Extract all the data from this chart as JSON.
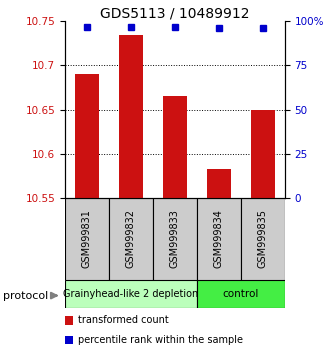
{
  "title": "GDS5113 / 10489912",
  "samples": [
    "GSM999831",
    "GSM999832",
    "GSM999833",
    "GSM999834",
    "GSM999835"
  ],
  "bar_values": [
    10.69,
    10.735,
    10.665,
    10.583,
    10.65
  ],
  "bar_baseline": 10.55,
  "percentile_values": [
    97,
    97,
    97,
    96,
    96
  ],
  "ylim_left": [
    10.55,
    10.75
  ],
  "ylim_right": [
    0,
    100
  ],
  "yticks_left": [
    10.55,
    10.6,
    10.65,
    10.7,
    10.75
  ],
  "yticks_right": [
    0,
    25,
    50,
    75,
    100
  ],
  "ytick_labels_right": [
    "0",
    "25",
    "50",
    "75",
    "100%"
  ],
  "bar_color": "#cc1111",
  "percentile_color": "#0000cc",
  "grid_color": "#000000",
  "sample_box_color": "#cccccc",
  "protocol_groups": [
    {
      "label": "Grainyhead-like 2 depletion",
      "indices": [
        0,
        1,
        2
      ],
      "color": "#bbffbb"
    },
    {
      "label": "control",
      "indices": [
        3,
        4
      ],
      "color": "#44ee44"
    }
  ],
  "protocol_label": "protocol",
  "legend_entries": [
    {
      "label": "transformed count",
      "color": "#cc1111"
    },
    {
      "label": "percentile rank within the sample",
      "color": "#0000cc"
    }
  ],
  "title_fontsize": 10,
  "tick_fontsize": 7.5,
  "sample_fontsize": 7,
  "protocol_fontsize": 7.5
}
